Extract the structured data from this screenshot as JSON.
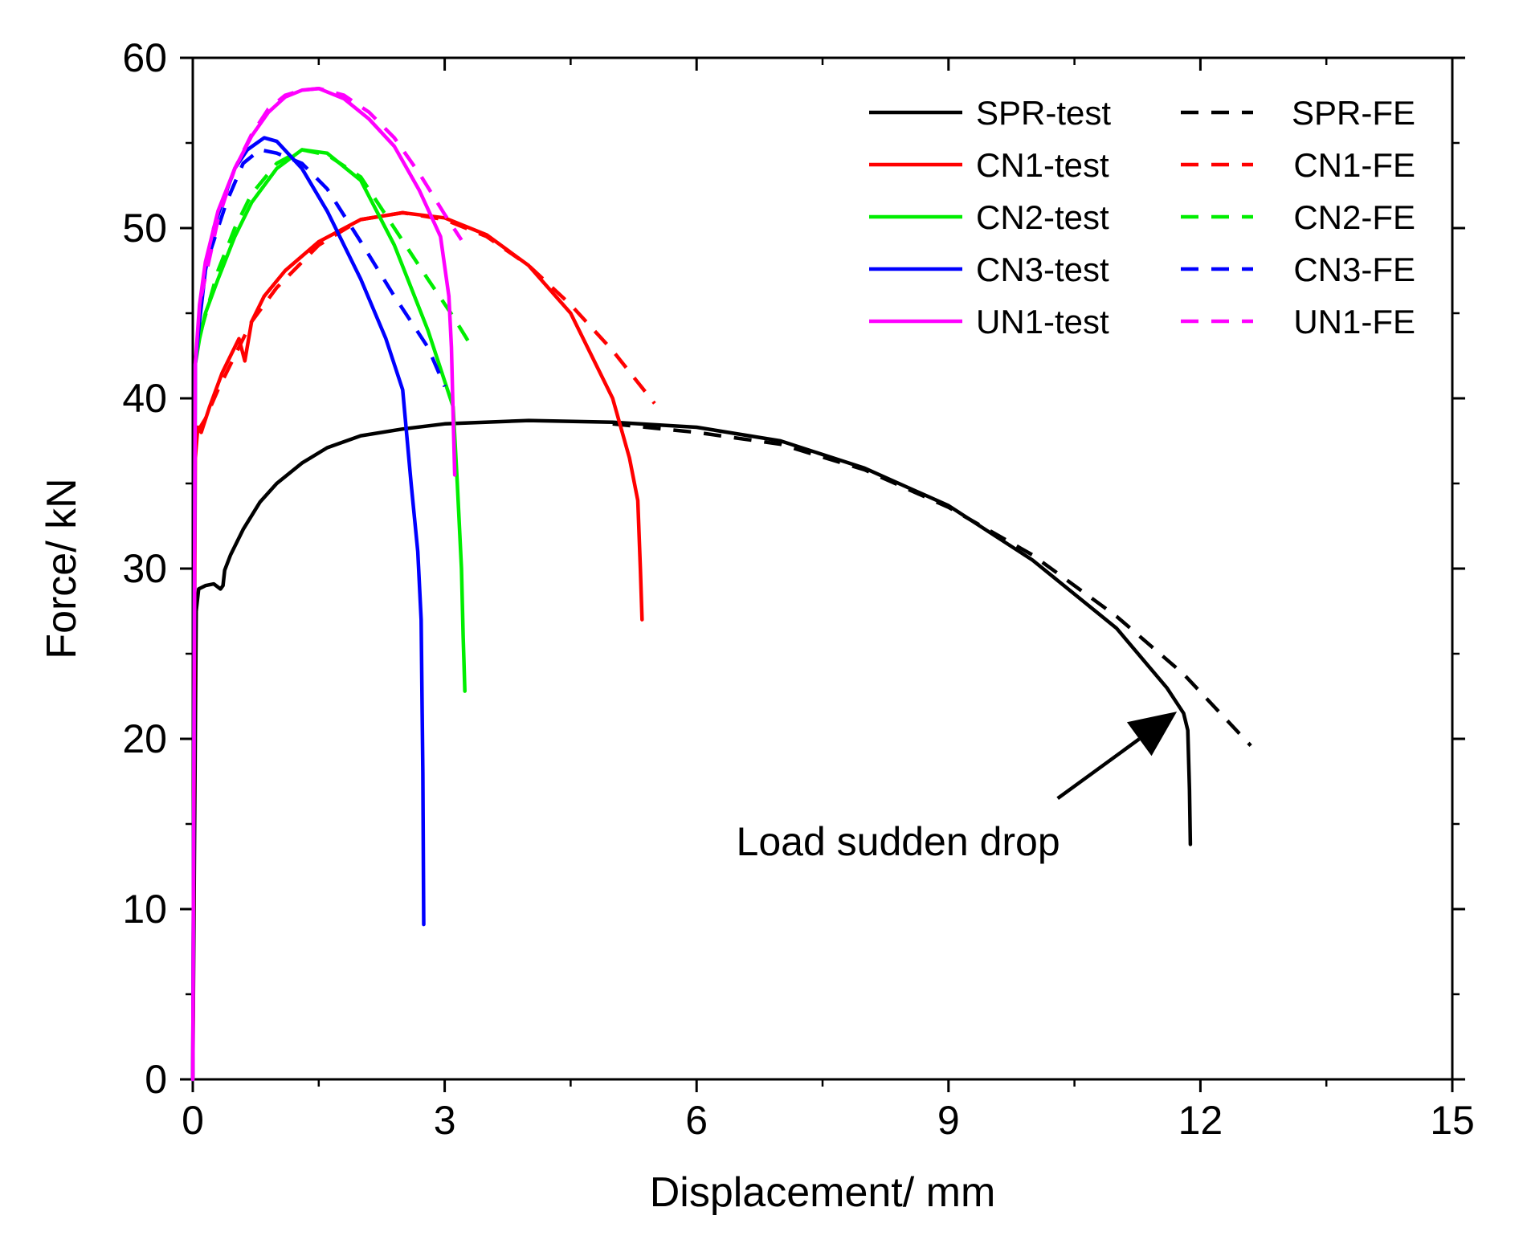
{
  "chart_data": {
    "type": "line",
    "title": "",
    "xlabel": "Displacement/ mm",
    "ylabel": "Force/ kN",
    "xlim": [
      0,
      15
    ],
    "ylim": [
      0,
      60
    ],
    "xticks": [
      0,
      3,
      6,
      9,
      12,
      15
    ],
    "yticks": [
      0,
      10,
      20,
      30,
      40,
      50,
      60
    ],
    "grid": false,
    "legend_position": "top-right",
    "series": [
      {
        "name": "SPR-test",
        "color": "#000000",
        "dash": "solid",
        "x": [
          0,
          0.04,
          0.07,
          0.15,
          0.25,
          0.33,
          0.36,
          0.38,
          0.45,
          0.6,
          0.8,
          1.0,
          1.3,
          1.6,
          2.0,
          2.5,
          3.0,
          4.0,
          5.0,
          6.0,
          7.0,
          8.0,
          9.0,
          10.0,
          11.0,
          11.6,
          11.8,
          11.85,
          11.87,
          11.88
        ],
        "y": [
          0,
          27.5,
          28.8,
          29.0,
          29.1,
          28.8,
          29.0,
          29.9,
          30.8,
          32.3,
          33.9,
          35.0,
          36.2,
          37.1,
          37.8,
          38.2,
          38.5,
          38.7,
          38.6,
          38.3,
          37.5,
          35.9,
          33.7,
          30.5,
          26.5,
          23.0,
          21.5,
          20.5,
          17.0,
          13.8
        ]
      },
      {
        "name": "SPR-FE",
        "color": "#000000",
        "dash": "dashed",
        "x": [
          5.0,
          6.0,
          7.0,
          8.0,
          9.0,
          10.0,
          11.0,
          11.8,
          12.6
        ],
        "y": [
          38.5,
          38.0,
          37.3,
          35.8,
          33.6,
          30.8,
          27.2,
          23.8,
          19.6
        ]
      },
      {
        "name": "CN1-test",
        "color": "#ff0000",
        "dash": "solid",
        "x": [
          0,
          0.03,
          0.06,
          0.1,
          0.2,
          0.35,
          0.45,
          0.55,
          0.62,
          0.7,
          0.85,
          1.1,
          1.5,
          2.0,
          2.5,
          3.0,
          3.5,
          4.0,
          4.5,
          5.0,
          5.2,
          5.3,
          5.33,
          5.35
        ],
        "y": [
          0,
          36.5,
          38.3,
          38.0,
          39.5,
          41.5,
          42.5,
          43.5,
          42.2,
          44.5,
          46.0,
          47.5,
          49.2,
          50.5,
          50.9,
          50.6,
          49.6,
          47.8,
          45.0,
          40.0,
          36.5,
          34.0,
          30.0,
          27.0
        ]
      },
      {
        "name": "CN1-FE",
        "color": "#ff0000",
        "dash": "dashed",
        "x": [
          0.05,
          0.15,
          0.3,
          0.5,
          0.7,
          1.0,
          1.5,
          2.0,
          2.5,
          3.0,
          3.5,
          4.0,
          4.5,
          5.0,
          5.5
        ],
        "y": [
          38.0,
          38.8,
          40.5,
          42.5,
          44.5,
          46.5,
          49.0,
          50.5,
          50.9,
          50.5,
          49.5,
          47.8,
          45.5,
          42.8,
          39.7
        ]
      },
      {
        "name": "CN2-test",
        "color": "#00ee00",
        "dash": "solid",
        "x": [
          0,
          0.03,
          0.08,
          0.15,
          0.3,
          0.5,
          0.7,
          1.0,
          1.3,
          1.6,
          2.0,
          2.4,
          2.8,
          3.1,
          3.15,
          3.2,
          3.22,
          3.24
        ],
        "y": [
          0,
          42.0,
          43.5,
          45.0,
          47.0,
          49.5,
          51.5,
          53.5,
          54.6,
          54.4,
          52.8,
          49.0,
          44.0,
          39.5,
          35.0,
          30.0,
          26.0,
          22.8
        ]
      },
      {
        "name": "CN2-FE",
        "color": "#00ee00",
        "dash": "dashed",
        "x": [
          0.1,
          0.3,
          0.5,
          0.7,
          1.0,
          1.3,
          1.6,
          2.0,
          2.4,
          2.8,
          3.1,
          3.3
        ],
        "y": [
          44.0,
          47.5,
          50.0,
          52.0,
          53.8,
          54.6,
          54.3,
          53.0,
          50.0,
          47.0,
          44.8,
          43.2
        ]
      },
      {
        "name": "CN3-test",
        "color": "#0000ff",
        "dash": "solid",
        "x": [
          0,
          0.03,
          0.08,
          0.15,
          0.25,
          0.35,
          0.5,
          0.65,
          0.85,
          1.0,
          1.3,
          1.6,
          2.0,
          2.3,
          2.5,
          2.6,
          2.68,
          2.72,
          2.74,
          2.75
        ],
        "y": [
          0,
          42.0,
          44.5,
          47.5,
          50.0,
          51.5,
          53.5,
          54.6,
          55.3,
          55.1,
          53.5,
          51.0,
          47.0,
          43.5,
          40.5,
          35.0,
          31.0,
          27.0,
          18.0,
          9.1
        ]
      },
      {
        "name": "CN3-FE",
        "color": "#0000ff",
        "dash": "dashed",
        "x": [
          0.2,
          0.4,
          0.6,
          0.8,
          1.0,
          1.3,
          1.6,
          2.0,
          2.4,
          2.8,
          3.0
        ],
        "y": [
          48.5,
          51.5,
          53.8,
          54.6,
          54.4,
          53.8,
          52.3,
          49.2,
          46.0,
          43.0,
          40.7
        ]
      },
      {
        "name": "UN1-test",
        "color": "#ff00ff",
        "dash": "solid",
        "x": [
          0,
          0.03,
          0.08,
          0.15,
          0.3,
          0.5,
          0.7,
          0.9,
          1.1,
          1.3,
          1.5,
          1.8,
          2.1,
          2.4,
          2.7,
          2.95,
          3.05,
          3.08,
          3.1,
          3.12
        ],
        "y": [
          0,
          42.0,
          45.5,
          48.0,
          51.0,
          53.5,
          55.4,
          56.8,
          57.7,
          58.1,
          58.2,
          57.6,
          56.4,
          54.8,
          52.2,
          49.5,
          46.0,
          43.0,
          39.0,
          35.5
        ]
      },
      {
        "name": "UN1-FE",
        "color": "#ff00ff",
        "dash": "dashed",
        "x": [
          0.1,
          0.3,
          0.5,
          0.7,
          0.9,
          1.1,
          1.3,
          1.5,
          1.8,
          2.1,
          2.4,
          2.7,
          3.0,
          3.2
        ],
        "y": [
          46.0,
          50.5,
          53.5,
          55.5,
          57.0,
          57.8,
          58.1,
          58.2,
          57.8,
          56.8,
          55.3,
          53.2,
          50.8,
          49.3
        ]
      }
    ],
    "annotations": [
      {
        "text": "Load sudden drop",
        "x": 8.4,
        "y": 14.0,
        "arrow_from": [
          10.3,
          16.5
        ],
        "arrow_to": [
          11.72,
          21.6
        ]
      }
    ]
  }
}
